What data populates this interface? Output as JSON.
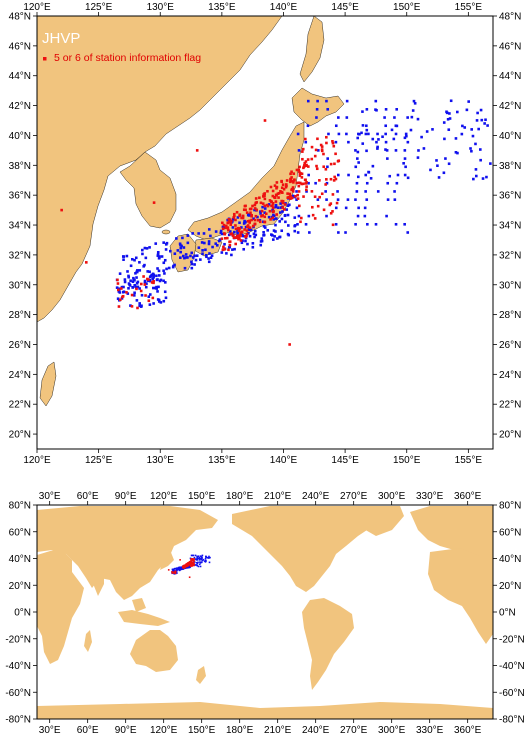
{
  "colors": {
    "land": "#f1c47e",
    "ocean": "#ffffff",
    "station": "#1010ee",
    "flagged": "#ee1010",
    "frame": "#000000",
    "title_text": "#ffffff"
  },
  "top_map": {
    "title": "JHVP",
    "legend_label": "5 or 6 of station information flag",
    "x_ticks": [
      "120°E",
      "125°E",
      "130°E",
      "135°E",
      "140°E",
      "145°E",
      "150°E",
      "155°E"
    ],
    "y_ticks": [
      "48°N",
      "46°N",
      "44°N",
      "42°N",
      "40°N",
      "38°N",
      "36°N",
      "34°N",
      "32°N",
      "30°N",
      "28°N",
      "26°N",
      "24°N",
      "22°N",
      "20°N"
    ],
    "lon_range": [
      120,
      157
    ],
    "lat_range": [
      19,
      48
    ]
  },
  "bottom_map": {
    "x_ticks": [
      "30°E",
      "60°E",
      "90°E",
      "120°E",
      "150°E",
      "180°E",
      "210°E",
      "240°E",
      "270°E",
      "300°E",
      "330°E",
      "360°E"
    ],
    "y_ticks": [
      "80°N",
      "60°N",
      "40°N",
      "20°N",
      "0°N",
      "-20°N",
      "-40°N",
      "-60°N",
      "-80°N"
    ],
    "lon_range": [
      20,
      380
    ],
    "lat_range": [
      -80,
      80
    ]
  }
}
